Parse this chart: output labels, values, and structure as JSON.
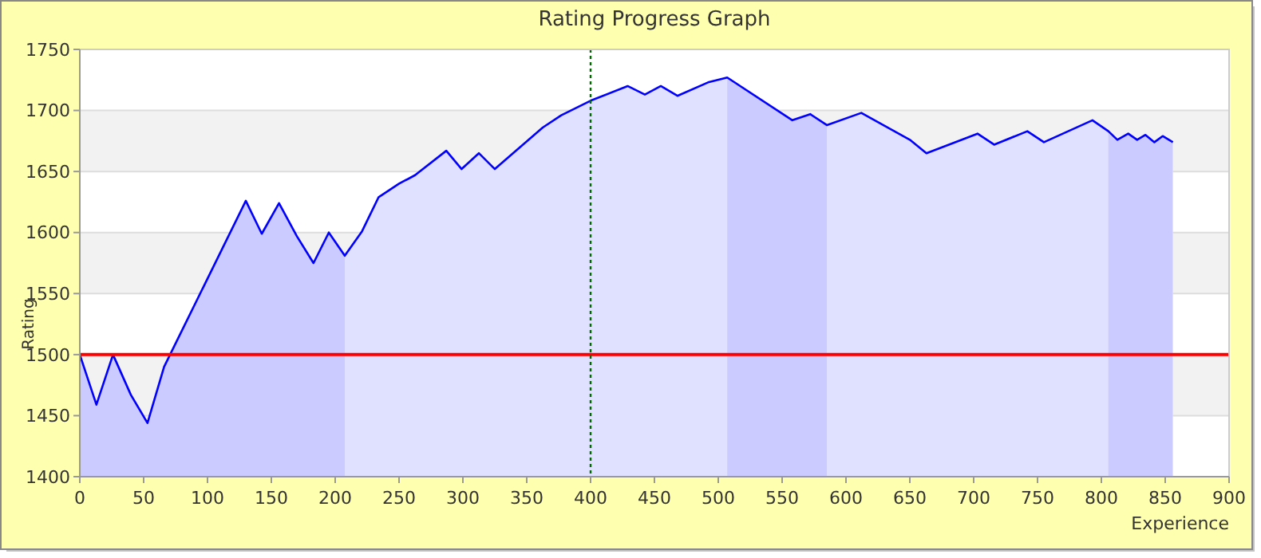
{
  "chart_data": {
    "type": "area",
    "title": "Rating Progress Graph",
    "xlabel": "Experience",
    "ylabel": "Rating",
    "xlim": [
      0,
      900
    ],
    "xticks": [
      0,
      50,
      100,
      150,
      200,
      250,
      300,
      350,
      400,
      450,
      500,
      550,
      600,
      650,
      700,
      750,
      800,
      850,
      900
    ],
    "ylim": [
      1400,
      1750
    ],
    "yticks": [
      1400,
      1450,
      1500,
      1550,
      1600,
      1650,
      1700,
      1750
    ],
    "grid": "y",
    "series": [
      {
        "color": "#0000ff",
        "x": [
          0,
          13,
          26,
          40,
          53,
          66,
          130,
          142.5,
          156,
          170,
          183,
          195,
          207.5,
          221,
          234,
          250,
          262.5,
          287,
          299,
          312.5,
          325,
          362.5,
          377,
          400,
          429,
          442.5,
          455,
          468,
          492,
          507,
          558,
          572,
          585,
          612,
          650,
          663,
          703,
          716,
          742,
          755,
          793,
          805.5,
          812.5,
          821,
          828,
          834.5,
          841.5,
          848,
          856
        ],
        "values": [
          1500,
          1459,
          1500,
          1467,
          1444,
          1490,
          1626,
          1599,
          1624,
          1597,
          1575,
          1600,
          1581,
          1601,
          1629,
          1640,
          1647,
          1667,
          1652,
          1665,
          1652,
          1686,
          1696,
          1708,
          1720,
          1713,
          1720,
          1712,
          1723,
          1727,
          1692,
          1697,
          1688,
          1698,
          1676,
          1665,
          1681,
          1672,
          1683,
          1674,
          1692,
          1683,
          1676,
          1681,
          1676,
          1680,
          1674,
          1679,
          1674
        ]
      }
    ],
    "ref_lines": [
      {
        "axis": "y",
        "value": 1500,
        "color": "#ff0000",
        "line_style": "solid"
      },
      {
        "axis": "x",
        "value": 400,
        "color": "#006600",
        "line_style": "dotted"
      }
    ],
    "bands": [
      {
        "axis": "x",
        "from": 0,
        "to": 207.5,
        "color": "#ccccff"
      },
      {
        "axis": "x",
        "from": 507,
        "to": 585,
        "color": "#ccccff"
      },
      {
        "axis": "x",
        "from": 805.5,
        "to": 856,
        "color": "#ccccff"
      }
    ]
  }
}
